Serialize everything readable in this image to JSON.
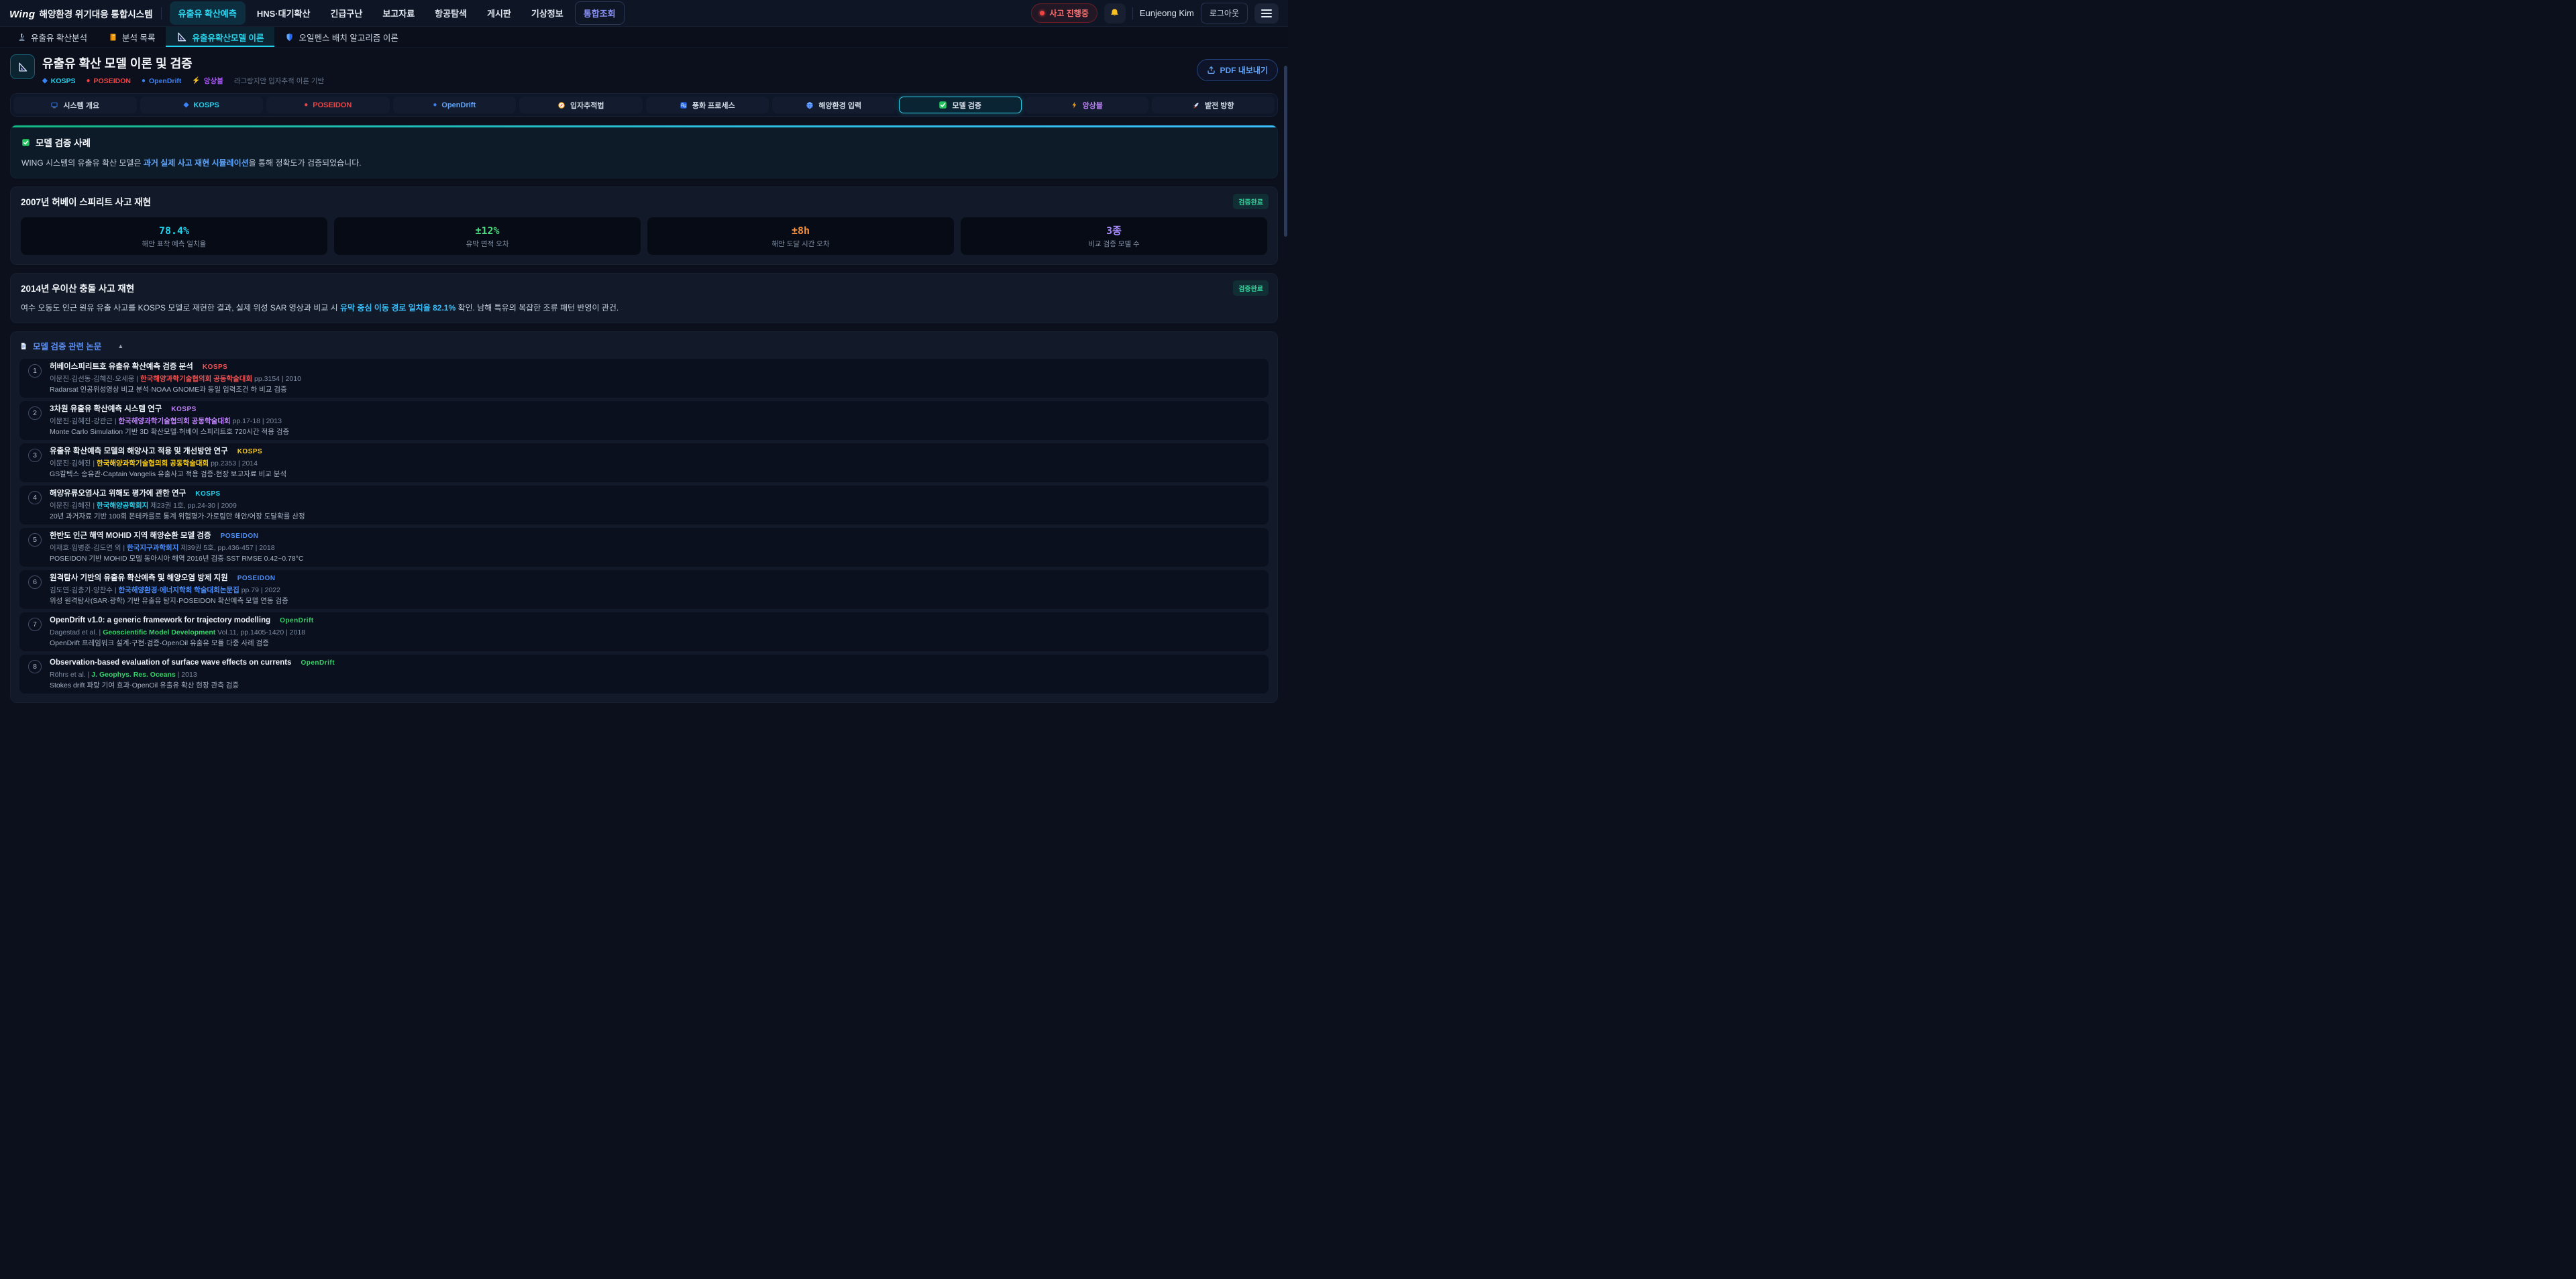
{
  "header": {
    "logo_mark": "Wing",
    "logo_text": "해양환경 위기대응 통합시스템",
    "nav": [
      {
        "label": "유출유 확산예측",
        "active": true
      },
      {
        "label": "HNS·대기확산"
      },
      {
        "label": "긴급구난"
      },
      {
        "label": "보고자료"
      },
      {
        "label": "항공탐색"
      },
      {
        "label": "게시판"
      },
      {
        "label": "기상정보"
      },
      {
        "label": "통합조회",
        "highlight": true
      }
    ],
    "incident_badge": "사고 진행중",
    "bell_icon": "bell-icon",
    "user": "Eunjeong Kim",
    "logout": "로그아웃"
  },
  "subtabs": [
    {
      "icon": "microscope-icon",
      "label": "유출유 확산분석"
    },
    {
      "icon": "book-icon",
      "label": "분석 목록"
    },
    {
      "icon": "ruler-icon",
      "label": "유출유확산모델 이론",
      "active": true
    },
    {
      "icon": "shield-icon",
      "label": "오일펜스 배치 알고리즘 이론"
    }
  ],
  "page": {
    "icon": "ruler-icon",
    "title": "유출유 확산 모델 이론 및 검증",
    "badges": [
      {
        "glyph": "◆",
        "glyph_color": "#3b82f6",
        "label": "KOSPS",
        "color": "#22d3ee"
      },
      {
        "glyph": "●",
        "glyph_color": "#ef4444",
        "label": "POSEIDON",
        "color": "#ef4444"
      },
      {
        "glyph": "●",
        "glyph_color": "#3b82f6",
        "label": "OpenDrift",
        "color": "#3b82f6"
      },
      {
        "glyph": "⚡",
        "glyph_color": "#f59e0b",
        "label": "앙상블",
        "color": "#a855f7"
      }
    ],
    "subtitle": "라그랑지안 입자추적 이론 기반",
    "export_label": "PDF 내보내기"
  },
  "toc": [
    {
      "icon": "monitor-icon",
      "label": "시스템 개요"
    },
    {
      "glyph": "◆",
      "glyph_color": "#3b82f6",
      "label": "KOSPS",
      "color": "#22d3ee"
    },
    {
      "glyph": "●",
      "glyph_color": "#ef4444",
      "label": "POSEIDON",
      "color": "#ef4444"
    },
    {
      "glyph": "●",
      "glyph_color": "#3b82f6",
      "label": "OpenDrift",
      "color": "#60a5fa"
    },
    {
      "icon": "compass-icon",
      "label": "입자추적법"
    },
    {
      "icon": "wave-icon",
      "label": "풍화 프로세스"
    },
    {
      "icon": "globe-icon",
      "label": "해양환경 입력"
    },
    {
      "icon": "check-icon",
      "label": "모델 검증",
      "active": true
    },
    {
      "icon": "lightning-icon",
      "label": "앙상블",
      "color": "#c084fc"
    },
    {
      "icon": "rocket-icon",
      "label": "발전 방향"
    }
  ],
  "banner": {
    "icon": "check-icon",
    "title": "모델 검증 사례",
    "text_before": "WING 시스템의 유출유 확산 모델은 ",
    "text_link": "과거 실제 사고 재현 시뮬레이션",
    "text_after": "을 통해 정확도가 검증되었습니다."
  },
  "case1": {
    "title": "2007년 허베이 스피리트 사고 재현",
    "badge": "검증완료",
    "stats": [
      {
        "value": "78.4%",
        "label": "해안 표착 예측 일치율",
        "color": "#22d3ee"
      },
      {
        "value": "±12%",
        "label": "유막 면적 오차",
        "color": "#4ade80"
      },
      {
        "value": "±8h",
        "label": "해안 도달 시간 오차",
        "color": "#fb923c"
      },
      {
        "value": "3종",
        "label": "비교 검증 모델 수",
        "color": "#a78bfa"
      }
    ]
  },
  "case2": {
    "title": "2014년 우이산 충돌 사고 재현",
    "badge": "검증완료",
    "text_before": "여수 오동도 인근 원유 유출 사고를 KOSPS 모델로 재현한 결과, 실제 위성 SAR 영상과 비교 시 ",
    "text_highlight": "유막 중심 이동 경로 일치율 82.1%",
    "text_after": " 확인. 남해 특유의 복잡한 조류 패턴 반영이 관건."
  },
  "papers": {
    "icon": "document-icon",
    "title": "모델 검증 관련 논문",
    "collapse_icon": "▲",
    "items": [
      {
        "num": "1",
        "title": "허베이스피리트호 유출유 확산예측 검증 분석",
        "tag": "KOSPS",
        "accent": "#f05252",
        "authors": "이문진·김선동·김혜진·오세웅 | ",
        "journal": "한국해양과학기술협의회 공동학술대회",
        "detail": " pp.3154 | 2010",
        "desc": "Radarsat 인공위성영상 비교 분석·NOAA GNOME과 동일 입력조건 하 비교 검증"
      },
      {
        "num": "2",
        "title": "3차원 유출유 확산예측 시스템 연구",
        "tag": "KOSPS",
        "accent": "#c084fc",
        "authors": "이문진·김혜진·강관근 | ",
        "journal": "한국해양과학기술협의회 공동학술대회",
        "detail": " pp.17-18 | 2013",
        "desc": "Monte Carlo Simulation 기반 3D 확산모델·허베이 스피리트호 720시간 적용 검증"
      },
      {
        "num": "3",
        "title": "유출유 확산예측 모델의 해양사고 적용 및 개선방안 연구",
        "tag": "KOSPS",
        "accent": "#facc15",
        "authors": "이문진·김혜진 | ",
        "journal": "한국해양과학기술협의회 공동학술대회",
        "detail": " pp.2353 | 2014",
        "desc": "GS칼텍스 송유관·Captain Vangelis 유출사고 적용 검증·현장 보고자료 비교 분석"
      },
      {
        "num": "4",
        "title": "해양유류오염사고 위해도 평가에 관한 연구",
        "tag": "KOSPS",
        "accent": "#22d3ee",
        "authors": "이문진·김혜진 | ",
        "journal": "한국해양공학회지",
        "detail": " 제23권 1호, pp.24-30 | 2009",
        "desc": "20년 과거자료 기반 100회 몬테카를로 통계 위험평가·가로림만 해안/어장 도달확률 산정"
      },
      {
        "num": "5",
        "title": "한반도 인근 해역 MOHID 지역 해양순환 모델 검증",
        "tag": "POSEIDON",
        "accent": "#4d8df6",
        "authors": "이재호·임병준·김도연 외 | ",
        "journal": "한국지구과학회지",
        "detail": " 제39권 5호, pp.436-457 | 2018",
        "desc": "POSEIDON 기반 MOHID 모델 동아시아 해역 2016년 검증·SST RMSE 0.42~0.78°C"
      },
      {
        "num": "6",
        "title": "원격탐사 기반의 유출유 확산예측 및 해양오염 방제 지원",
        "tag": "POSEIDON",
        "accent": "#4d8df6",
        "authors": "김도연·김충기·양찬수 | ",
        "journal": "한국해양환경·에너지학회 학술대회논문집",
        "detail": " pp.79 | 2022",
        "desc": "위성 원격탐사(SAR·광학) 기반 유출유 탐지·POSEIDON 확산예측 모델 연동 검증"
      },
      {
        "num": "7",
        "title": "OpenDrift v1.0: a generic framework for trajectory modelling",
        "tag": "OpenDrift",
        "accent": "#34d368",
        "authors": "Dagestad et al. | ",
        "journal": "Geoscientific Model Development",
        "detail": " Vol.11, pp.1405-1420 | 2018",
        "desc": "OpenDrift 프레임워크 설계·구현·검증·OpenOil 유출유 모듈 다중 사례 검증"
      },
      {
        "num": "8",
        "title": "Observation-based evaluation of surface wave effects on currents",
        "tag": "OpenDrift",
        "accent": "#34d368",
        "authors": "Röhrs et al. | ",
        "journal": "J. Geophys. Res. Oceans",
        "detail": " | 2013",
        "desc": "Stokes drift 파랑 기여 효과·OpenOil 유출유 확산 현장 관측 검증"
      }
    ]
  }
}
